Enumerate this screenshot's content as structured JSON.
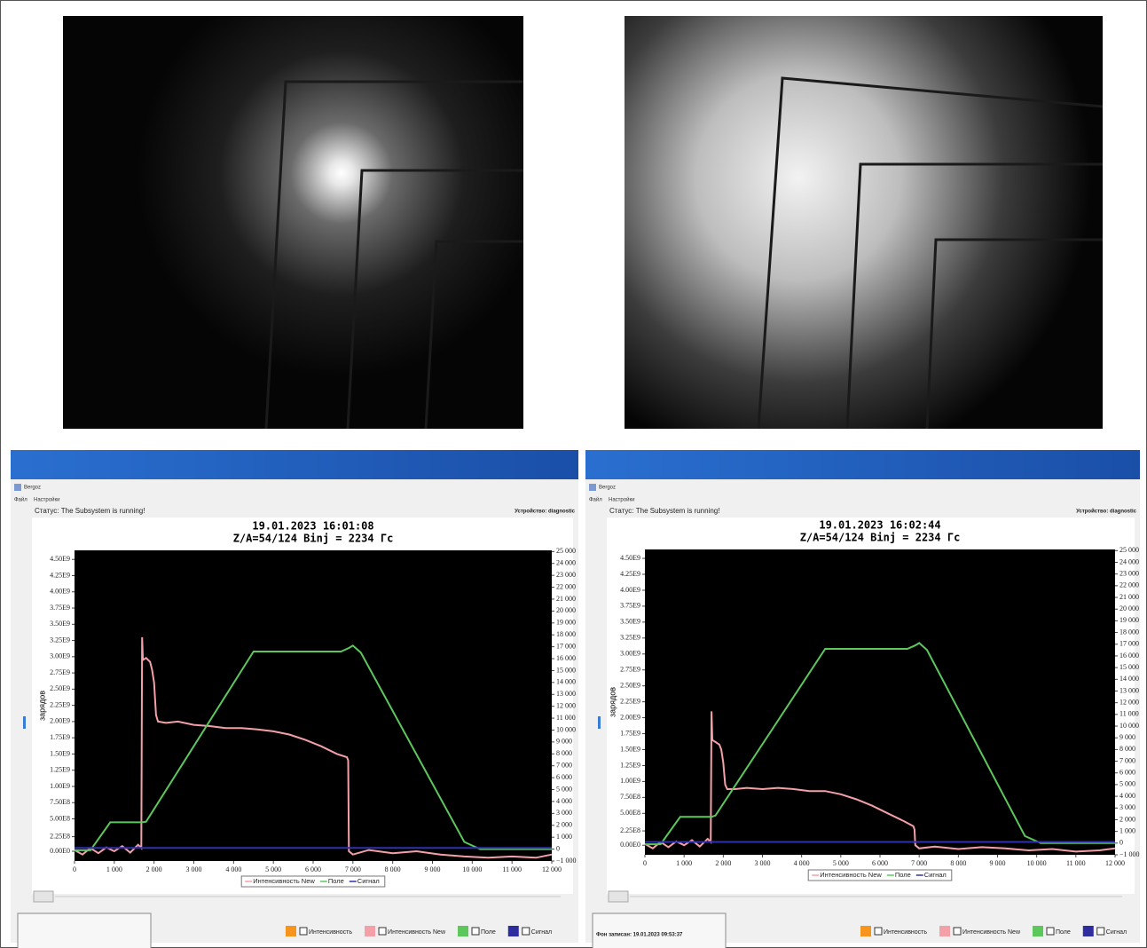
{
  "windows": [
    {
      "app": "Bergoz",
      "menu": [
        "Файл",
        "Настройки"
      ],
      "status": "Статус: The Subsystem is running!",
      "device": "Устройство: diagnostic",
      "checkboxes": [
        "Интенсивность",
        "Интенсивность New",
        "Поле",
        "Сигнал"
      ],
      "checkbox_colors": [
        "#f7941d",
        "#f4a0a8",
        "#5cc85c",
        "#2d2da0"
      ]
    },
    {
      "app": "Bergoz",
      "menu": [
        "Файл",
        "Настройки"
      ],
      "status": "Статус: The Subsystem is running!",
      "device": "Устройство: diagnostic",
      "background_note": "Фон записан: 19.01.2023 09:53:37",
      "checkboxes": [
        "Интенсивность",
        "Интенсивность New",
        "Поле",
        "Сигнал"
      ],
      "checkbox_colors": [
        "#f7941d",
        "#f4a0a8",
        "#5cc85c",
        "#2d2da0"
      ]
    }
  ],
  "chart_data": [
    {
      "type": "line",
      "title": "19.01.2023 16:01:08",
      "subtitle": "Z/A=54/124  Binj = 2234 Гс",
      "ylabel": "зарядов",
      "xlim": [
        0,
        12000
      ],
      "ylim": [
        -150000000.0,
        4640000000.0
      ],
      "y2lim": [
        -1000,
        25100
      ],
      "grid": false,
      "legend": "bottom",
      "xticks": [
        0,
        {
          "value": 1000,
          "label": "1 000"
        },
        {
          "value": 2000,
          "label": "2 000"
        },
        {
          "value": 3000,
          "label": "3 000"
        },
        {
          "value": 4000,
          "label": "4 000"
        },
        {
          "value": 5000,
          "label": "5 000"
        },
        {
          "value": 6000,
          "label": "6 000"
        },
        {
          "value": 7000,
          "label": "7 000"
        },
        {
          "value": 8000,
          "label": "8 000"
        },
        {
          "value": 9000,
          "label": "9 000"
        },
        {
          "value": 10000,
          "label": "10 000"
        },
        {
          "value": 11000,
          "label": "11 000"
        },
        {
          "value": 12000,
          "label": "12 000"
        }
      ],
      "yticks": [
        {
          "value": 0,
          "label": "0.00E0"
        },
        {
          "value": 225000000.0,
          "label": "2.25E8"
        },
        {
          "value": 500000000.0,
          "label": "5.00E8"
        },
        {
          "value": 750000000.0,
          "label": "7.50E8"
        },
        {
          "value": 1000000000.0,
          "label": "1.00E9"
        },
        {
          "value": 1250000000.0,
          "label": "1.25E9"
        },
        {
          "value": 1500000000.0,
          "label": "1.50E9"
        },
        {
          "value": 1750000000.0,
          "label": "1.75E9"
        },
        {
          "value": 2000000000.0,
          "label": "2.00E9"
        },
        {
          "value": 2250000000.0,
          "label": "2.25E9"
        },
        {
          "value": 2500000000.0,
          "label": "2.50E9"
        },
        {
          "value": 2750000000.0,
          "label": "2.75E9"
        },
        {
          "value": 3000000000.0,
          "label": "3.00E9"
        },
        {
          "value": 3250000000.0,
          "label": "3.25E9"
        },
        {
          "value": 3500000000.0,
          "label": "3.50E9"
        },
        {
          "value": 3750000000.0,
          "label": "3.75E9"
        },
        {
          "value": 4000000000.0,
          "label": "4.00E9"
        },
        {
          "value": 4250000000.0,
          "label": "4.25E9"
        },
        {
          "value": 4500000000.0,
          "label": "4.50E9"
        }
      ],
      "y2ticks": [
        {
          "value": -1000,
          "label": "−1 000"
        },
        0,
        {
          "value": 1000,
          "label": "1 000"
        },
        {
          "value": 2000,
          "label": "2 000"
        },
        {
          "value": 3000,
          "label": "3 000"
        },
        {
          "value": 4000,
          "label": "4 000"
        },
        {
          "value": 5000,
          "label": "5 000"
        },
        {
          "value": 6000,
          "label": "6 000"
        },
        {
          "value": 7000,
          "label": "7 000"
        },
        {
          "value": 8000,
          "label": "8 000"
        },
        {
          "value": 9000,
          "label": "9 000"
        },
        {
          "value": 10000,
          "label": "10 000"
        },
        {
          "value": 11000,
          "label": "11 000"
        },
        {
          "value": 12000,
          "label": "12 000"
        },
        {
          "value": 13000,
          "label": "13 000"
        },
        {
          "value": 14000,
          "label": "14 000"
        },
        {
          "value": 15000,
          "label": "15 000"
        },
        {
          "value": 16000,
          "label": "16 000"
        },
        {
          "value": 17000,
          "label": "17 000"
        },
        {
          "value": 18000,
          "label": "18 000"
        },
        {
          "value": 19000,
          "label": "19 000"
        },
        {
          "value": 20000,
          "label": "20 000"
        },
        {
          "value": 21000,
          "label": "21 000"
        },
        {
          "value": 22000,
          "label": "22 000"
        },
        {
          "value": 23000,
          "label": "23 000"
        },
        {
          "value": 24000,
          "label": "24 000"
        },
        {
          "value": 25000,
          "label": "25 000"
        }
      ],
      "series": [
        {
          "name": "Интенсивность New",
          "color": "#f4a0a8",
          "x": [
            0,
            200,
            400,
            600,
            800,
            1000,
            1200,
            1400,
            1600,
            1680,
            1700,
            1720,
            1800,
            1900,
            1950,
            2000,
            2050,
            2100,
            2300,
            2600,
            3000,
            3400,
            3800,
            4200,
            4600,
            5000,
            5400,
            5800,
            6200,
            6600,
            6850,
            6880,
            6900,
            7000,
            7400,
            8000,
            8600,
            9200,
            9800,
            10400,
            11000,
            11600,
            12000
          ],
          "values": [
            20000000.0,
            -50000000.0,
            50000000.0,
            -30000000.0,
            60000000.0,
            0,
            80000000.0,
            -20000000.0,
            100000000.0,
            50000000.0,
            3300000000.0,
            2950000000.0,
            2980000000.0,
            2920000000.0,
            2800000000.0,
            2600000000.0,
            2100000000.0,
            2000000000.0,
            1980000000.0,
            2000000000.0,
            1950000000.0,
            1930000000.0,
            1900000000.0,
            1900000000.0,
            1880000000.0,
            1850000000.0,
            1800000000.0,
            1720000000.0,
            1620000000.0,
            1500000000.0,
            1450000000.0,
            1400000000.0,
            0,
            -50000000.0,
            20000000.0,
            -30000000.0,
            0,
            -50000000.0,
            -80000000.0,
            -100000000.0,
            -80000000.0,
            -100000000.0,
            -50000000.0
          ]
        },
        {
          "name": "Поле",
          "color": "#5cc85c",
          "axis": "y2",
          "x": [
            0,
            400,
            900,
            1700,
            1800,
            4500,
            6700,
            6900,
            7000,
            7200,
            9800,
            10200,
            12000
          ],
          "values": [
            -100,
            -100,
            2250,
            2250,
            2300,
            16600,
            16600,
            16900,
            17100,
            16500,
            600,
            0,
            0
          ]
        },
        {
          "name": "Сигнал",
          "color": "#3030b0",
          "axis": "y2",
          "x": [
            0,
            12000
          ],
          "values": [
            100,
            100
          ]
        }
      ]
    },
    {
      "type": "line",
      "title": "19.01.2023 16:02:44",
      "subtitle": "Z/A=54/124  Binj = 2234 Гс",
      "ylabel": "зарядов",
      "xlim": [
        0,
        12000
      ],
      "ylim": [
        -150000000.0,
        4640000000.0
      ],
      "y2lim": [
        -1000,
        25100
      ],
      "grid": false,
      "legend": "bottom",
      "xticks": [
        0,
        {
          "value": 1000,
          "label": "1 000"
        },
        {
          "value": 2000,
          "label": "2 000"
        },
        {
          "value": 3000,
          "label": "3 000"
        },
        {
          "value": 4000,
          "label": "4 000"
        },
        {
          "value": 5000,
          "label": "5 000"
        },
        {
          "value": 6000,
          "label": "6 000"
        },
        {
          "value": 7000,
          "label": "7 000"
        },
        {
          "value": 8000,
          "label": "8 000"
        },
        {
          "value": 9000,
          "label": "9 000"
        },
        {
          "value": 10000,
          "label": "10 000"
        },
        {
          "value": 11000,
          "label": "11 000"
        },
        {
          "value": 12000,
          "label": "12 000"
        }
      ],
      "yticks": [
        {
          "value": 0,
          "label": "0.00E0"
        },
        {
          "value": 225000000.0,
          "label": "2.25E8"
        },
        {
          "value": 500000000.0,
          "label": "5.00E8"
        },
        {
          "value": 750000000.0,
          "label": "7.50E8"
        },
        {
          "value": 1000000000.0,
          "label": "1.00E9"
        },
        {
          "value": 1250000000.0,
          "label": "1.25E9"
        },
        {
          "value": 1500000000.0,
          "label": "1.50E9"
        },
        {
          "value": 1750000000.0,
          "label": "1.75E9"
        },
        {
          "value": 2000000000.0,
          "label": "2.00E9"
        },
        {
          "value": 2250000000.0,
          "label": "2.25E9"
        },
        {
          "value": 2500000000.0,
          "label": "2.50E9"
        },
        {
          "value": 2750000000.0,
          "label": "2.75E9"
        },
        {
          "value": 3000000000.0,
          "label": "3.00E9"
        },
        {
          "value": 3250000000.0,
          "label": "3.25E9"
        },
        {
          "value": 3500000000.0,
          "label": "3.50E9"
        },
        {
          "value": 3750000000.0,
          "label": "3.75E9"
        },
        {
          "value": 4000000000.0,
          "label": "4.00E9"
        },
        {
          "value": 4250000000.0,
          "label": "4.25E9"
        },
        {
          "value": 4500000000.0,
          "label": "4.50E9"
        }
      ],
      "y2ticks": [
        {
          "value": -1000,
          "label": "−1 000"
        },
        0,
        {
          "value": 1000,
          "label": "1 000"
        },
        {
          "value": 2000,
          "label": "2 000"
        },
        {
          "value": 3000,
          "label": "3 000"
        },
        {
          "value": 4000,
          "label": "4 000"
        },
        {
          "value": 5000,
          "label": "5 000"
        },
        {
          "value": 6000,
          "label": "6 000"
        },
        {
          "value": 7000,
          "label": "7 000"
        },
        {
          "value": 8000,
          "label": "8 000"
        },
        {
          "value": 9000,
          "label": "9 000"
        },
        {
          "value": 10000,
          "label": "10 000"
        },
        {
          "value": 11000,
          "label": "11 000"
        },
        {
          "value": 12000,
          "label": "12 000"
        },
        {
          "value": 13000,
          "label": "13 000"
        },
        {
          "value": 14000,
          "label": "14 000"
        },
        {
          "value": 15000,
          "label": "15 000"
        },
        {
          "value": 16000,
          "label": "16 000"
        },
        {
          "value": 17000,
          "label": "17 000"
        },
        {
          "value": 18000,
          "label": "18 000"
        },
        {
          "value": 19000,
          "label": "19 000"
        },
        {
          "value": 20000,
          "label": "20 000"
        },
        {
          "value": 21000,
          "label": "21 000"
        },
        {
          "value": 22000,
          "label": "22 000"
        },
        {
          "value": 23000,
          "label": "23 000"
        },
        {
          "value": 24000,
          "label": "24 000"
        },
        {
          "value": 25000,
          "label": "25 000"
        }
      ],
      "series": [
        {
          "name": "Интенсивность New",
          "color": "#f4a0a8",
          "x": [
            0,
            200,
            400,
            600,
            800,
            1000,
            1200,
            1400,
            1600,
            1680,
            1700,
            1720,
            1800,
            1900,
            1950,
            2000,
            2050,
            2100,
            2300,
            2600,
            3000,
            3400,
            3800,
            4200,
            4600,
            5000,
            5400,
            5800,
            6200,
            6600,
            6850,
            6880,
            6900,
            7000,
            7400,
            8000,
            8600,
            9200,
            9800,
            10400,
            11000,
            11600,
            12000
          ],
          "values": [
            20000000.0,
            -50000000.0,
            50000000.0,
            -30000000.0,
            60000000.0,
            0,
            80000000.0,
            -20000000.0,
            100000000.0,
            50000000.0,
            2100000000.0,
            1650000000.0,
            1620000000.0,
            1580000000.0,
            1500000000.0,
            1300000000.0,
            950000000.0,
            880000000.0,
            880000000.0,
            900000000.0,
            880000000.0,
            900000000.0,
            880000000.0,
            850000000.0,
            850000000.0,
            800000000.0,
            720000000.0,
            620000000.0,
            500000000.0,
            380000000.0,
            300000000.0,
            250000000.0,
            0,
            -50000000.0,
            -20000000.0,
            -60000000.0,
            -30000000.0,
            -50000000.0,
            -80000000.0,
            -60000000.0,
            -100000000.0,
            -80000000.0,
            -50000000.0
          ]
        },
        {
          "name": "Поле",
          "color": "#5cc85c",
          "axis": "y2",
          "x": [
            0,
            400,
            900,
            1700,
            1800,
            4600,
            6700,
            6900,
            7000,
            7200,
            9700,
            10100,
            12000
          ],
          "values": [
            -100,
            -100,
            2250,
            2250,
            2350,
            16600,
            16600,
            16900,
            17100,
            16500,
            600,
            0,
            0
          ]
        },
        {
          "name": "Сигнал",
          "color": "#3030b0",
          "axis": "y2",
          "x": [
            0,
            12000
          ],
          "values": [
            100,
            100
          ]
        }
      ]
    }
  ]
}
